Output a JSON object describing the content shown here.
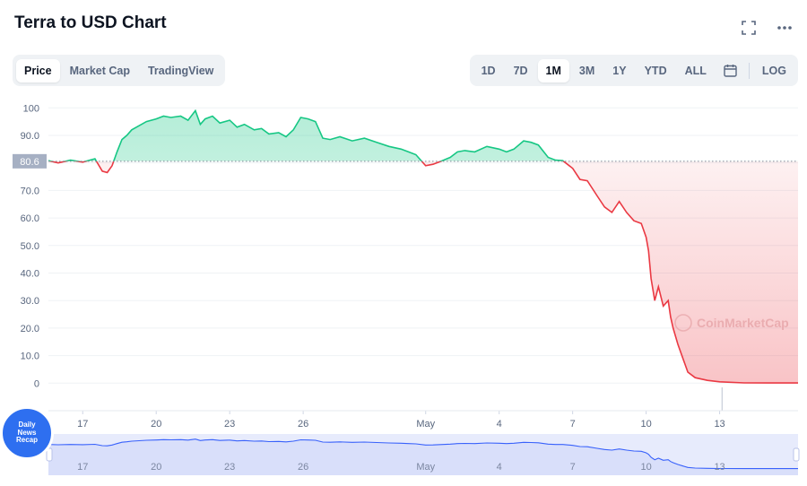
{
  "title": "Terra to USD Chart",
  "icons": {
    "fullscreen": "fullscreen-icon",
    "more": "more-icon",
    "calendar": "calendar-icon"
  },
  "tabs": [
    "Price",
    "Market Cap",
    "TradingView"
  ],
  "active_tab": "Price",
  "ranges": [
    "1D",
    "7D",
    "1M",
    "3M",
    "1Y",
    "YTD",
    "ALL"
  ],
  "active_range": "1M",
  "log_label": "LOG",
  "watermark": "CoinMarketCap",
  "badge": {
    "line1": "Daily",
    "line2": "News",
    "line3": "Recap"
  },
  "colors": {
    "up": "#16c784",
    "down": "#ea3943",
    "navigator": "#3861fb",
    "reference_label_bg": "#a6b0c3"
  },
  "chart_data": {
    "type": "area",
    "title": "",
    "xlabel": "",
    "ylabel": "",
    "reference_value": 80.6,
    "reference_label": "80.6",
    "ylim": [
      -10,
      104
    ],
    "xlim": [
      15.6,
      46.2
    ],
    "y_ticks": [
      "100",
      "90.0",
      "80.0",
      "70.0",
      "60.0",
      "50.0",
      "40.0",
      "30.0",
      "20.0",
      "10.0",
      "0"
    ],
    "x_ticks": [
      "17",
      "20",
      "23",
      "26",
      "May",
      "4",
      "7",
      "10",
      "13"
    ],
    "x_tick_days": [
      17,
      20,
      23,
      26,
      31,
      34,
      37,
      40,
      43
    ],
    "grid": true,
    "x": [
      15.6,
      16.0,
      16.5,
      17.0,
      17.5,
      17.8,
      18.0,
      18.2,
      18.4,
      18.6,
      18.8,
      19.0,
      19.3,
      19.6,
      20.0,
      20.3,
      20.6,
      21.0,
      21.3,
      21.6,
      21.8,
      22.0,
      22.3,
      22.6,
      23.0,
      23.3,
      23.6,
      24.0,
      24.3,
      24.6,
      25.0,
      25.3,
      25.6,
      25.9,
      26.2,
      26.5,
      26.8,
      27.1,
      27.5,
      28.0,
      28.5,
      29.0,
      29.5,
      30.0,
      30.3,
      30.6,
      31.0,
      31.3,
      31.6,
      32.0,
      32.3,
      32.6,
      33.0,
      33.5,
      34.0,
      34.3,
      34.6,
      35.0,
      35.3,
      35.6,
      36.0,
      36.3,
      36.6,
      37.0,
      37.3,
      37.6,
      38.0,
      38.3,
      38.6,
      38.9,
      39.2,
      39.5,
      39.8,
      40.0,
      40.1,
      40.2,
      40.35,
      40.5,
      40.7,
      40.9,
      41.0,
      41.1,
      41.3,
      41.5,
      41.7,
      42.0,
      42.5,
      43.0,
      44.0,
      45.0,
      46.2
    ],
    "y": [
      80.8,
      80.0,
      81.0,
      80.3,
      81.5,
      77.0,
      76.5,
      79.0,
      84.0,
      88.5,
      90.0,
      92.0,
      93.5,
      95.0,
      96.0,
      97.0,
      96.5,
      97.0,
      95.5,
      99.0,
      94.0,
      96.0,
      97.0,
      94.5,
      95.5,
      93.0,
      94.0,
      92.0,
      92.5,
      90.5,
      91.0,
      89.5,
      92.0,
      96.5,
      96.0,
      95.0,
      89.0,
      88.5,
      89.5,
      88.0,
      89.0,
      87.5,
      86.0,
      85.0,
      84.0,
      83.0,
      79.0,
      79.5,
      80.5,
      82.0,
      84.0,
      84.5,
      84.0,
      86.0,
      85.0,
      84.0,
      85.0,
      88.0,
      87.5,
      86.5,
      82.0,
      81.0,
      80.8,
      78.0,
      74.0,
      73.5,
      68.0,
      64.0,
      62.0,
      66.0,
      62.0,
      59.0,
      58.0,
      53.0,
      48.0,
      38.0,
      30.0,
      35.0,
      28.0,
      30.0,
      24.0,
      20.0,
      14.0,
      9.0,
      4.0,
      2.0,
      1.0,
      0.5,
      0.1,
      0.05,
      0.05
    ],
    "navigator": {
      "x_ticks": [
        "17",
        "20",
        "23",
        "26",
        "May",
        "4",
        "7",
        "10",
        "13"
      ],
      "ylim": [
        -10,
        104
      ]
    }
  }
}
